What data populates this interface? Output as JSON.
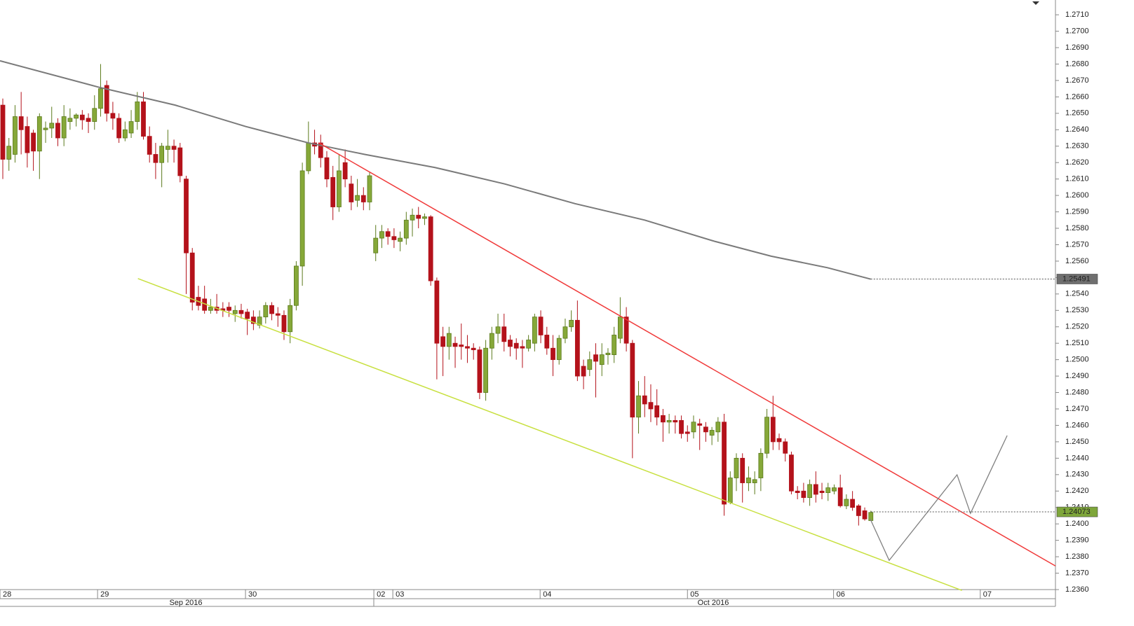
{
  "chart_data": {
    "type": "candlestick",
    "up_color": "#86a839",
    "up_stroke": "#5b7a1c",
    "down_color": "#b4121b",
    "xlim": [
      -0.46,
      172.2
    ],
    "ylim": [
      1.236,
      1.2719
    ],
    "yticks": [
      {
        "value": 1.236,
        "label": "1.2360"
      },
      {
        "value": 1.237,
        "label": "1.2370"
      },
      {
        "value": 1.238,
        "label": "1.2380"
      },
      {
        "value": 1.239,
        "label": "1.2390"
      },
      {
        "value": 1.24,
        "label": "1.2400"
      },
      {
        "value": 1.241,
        "label": "1.2410"
      },
      {
        "value": 1.242,
        "label": "1.2420"
      },
      {
        "value": 1.243,
        "label": "1.2430"
      },
      {
        "value": 1.244,
        "label": "1.2440"
      },
      {
        "value": 1.245,
        "label": "1.2450"
      },
      {
        "value": 1.246,
        "label": "1.2460"
      },
      {
        "value": 1.247,
        "label": "1.2470"
      },
      {
        "value": 1.248,
        "label": "1.2480"
      },
      {
        "value": 1.249,
        "label": "1.2490"
      },
      {
        "value": 1.25,
        "label": "1.2500"
      },
      {
        "value": 1.251,
        "label": "1.2510"
      },
      {
        "value": 1.252,
        "label": "1.2520"
      },
      {
        "value": 1.253,
        "label": "1.2530"
      },
      {
        "value": 1.254,
        "label": "1.2540"
      },
      {
        "value": 1.255,
        "label": "1.2550"
      },
      {
        "value": 1.256,
        "label": "1.2560"
      },
      {
        "value": 1.257,
        "label": "1.2570"
      },
      {
        "value": 1.258,
        "label": "1.2580"
      },
      {
        "value": 1.259,
        "label": "1.2590"
      },
      {
        "value": 1.26,
        "label": "1.2600"
      },
      {
        "value": 1.261,
        "label": "1.2610"
      },
      {
        "value": 1.262,
        "label": "1.2620"
      },
      {
        "value": 1.263,
        "label": "1.2630"
      },
      {
        "value": 1.264,
        "label": "1.2640"
      },
      {
        "value": 1.265,
        "label": "1.2650"
      },
      {
        "value": 1.266,
        "label": "1.2660"
      },
      {
        "value": 1.267,
        "label": "1.2670"
      },
      {
        "value": 1.268,
        "label": "1.2680"
      },
      {
        "value": 1.269,
        "label": "1.2690"
      },
      {
        "value": 1.27,
        "label": "1.2700"
      },
      {
        "value": 1.271,
        "label": "1.2710"
      }
    ],
    "xticks": [
      {
        "value": -0.46,
        "label": "28"
      },
      {
        "value": 15.5,
        "label": "29"
      },
      {
        "value": 39.7,
        "label": "30"
      },
      {
        "value": 60.7,
        "label": "02"
      },
      {
        "value": 63.8,
        "label": "03"
      },
      {
        "value": 87.9,
        "label": "04"
      },
      {
        "value": 112,
        "label": "05"
      },
      {
        "value": 135.9,
        "label": "06"
      },
      {
        "value": 159.9,
        "label": "07"
      }
    ],
    "months": [
      "Sep 2016",
      "Oct 2016"
    ],
    "ohlc": [
      [
        1.2655,
        1.2659,
        1.261,
        1.2622
      ],
      [
        1.2622,
        1.2635,
        1.2615,
        1.263
      ],
      [
        1.2625,
        1.2655,
        1.262,
        1.2648
      ],
      [
        1.2648,
        1.2663,
        1.2625,
        1.264
      ],
      [
        1.2642,
        1.2648,
        1.2617,
        1.2626
      ],
      [
        1.2638,
        1.264,
        1.2615,
        1.2627
      ],
      [
        1.2627,
        1.265,
        1.261,
        1.2648
      ],
      [
        1.264,
        1.2645,
        1.2632,
        1.2641
      ],
      [
        1.2641,
        1.2654,
        1.2635,
        1.2644
      ],
      [
        1.2644,
        1.2647,
        1.263,
        1.2635
      ],
      [
        1.2635,
        1.2655,
        1.263,
        1.2648
      ],
      [
        1.2645,
        1.2653,
        1.264,
        1.2647
      ],
      [
        1.2647,
        1.265,
        1.2642,
        1.2649
      ],
      [
        1.2649,
        1.2652,
        1.264,
        1.2646
      ],
      [
        1.2647,
        1.265,
        1.2638,
        1.2645
      ],
      [
        1.2645,
        1.2661,
        1.264,
        1.2653
      ],
      [
        1.2653,
        1.268,
        1.2648,
        1.2665
      ],
      [
        1.2667,
        1.267,
        1.2645,
        1.265
      ],
      [
        1.265,
        1.2657,
        1.264,
        1.2647
      ],
      [
        1.2647,
        1.265,
        1.2632,
        1.2635
      ],
      [
        1.2635,
        1.2645,
        1.2633,
        1.264
      ],
      [
        1.2638,
        1.2652,
        1.2635,
        1.2645
      ],
      [
        1.2645,
        1.2663,
        1.264,
        1.2657
      ],
      [
        1.2657,
        1.2663,
        1.2634,
        1.2636
      ],
      [
        1.2636,
        1.2642,
        1.262,
        1.2625
      ],
      [
        1.2625,
        1.2632,
        1.261,
        1.262
      ],
      [
        1.262,
        1.2632,
        1.2605,
        1.263
      ],
      [
        1.2628,
        1.264,
        1.262,
        1.263
      ],
      [
        1.263,
        1.2634,
        1.262,
        1.2628
      ],
      [
        1.2629,
        1.2632,
        1.2608,
        1.2612
      ],
      [
        1.261,
        1.2612,
        1.254,
        1.2565
      ],
      [
        1.2565,
        1.2568,
        1.253,
        1.2535
      ],
      [
        1.2538,
        1.2545,
        1.253,
        1.2533
      ],
      [
        1.2537,
        1.2545,
        1.2528,
        1.253
      ],
      [
        1.253,
        1.2537,
        1.2528,
        1.2532
      ],
      [
        1.2532,
        1.254,
        1.2528,
        1.253
      ],
      [
        1.2531,
        1.2535,
        1.2526,
        1.253
      ],
      [
        1.2532,
        1.2535,
        1.2526,
        1.253
      ],
      [
        1.2528,
        1.2533,
        1.2523,
        1.253
      ],
      [
        1.253,
        1.2534,
        1.2525,
        1.2528
      ],
      [
        1.2529,
        1.2531,
        1.2515,
        1.2525
      ],
      [
        1.2526,
        1.253,
        1.2518,
        1.2522
      ],
      [
        1.2521,
        1.253,
        1.2519,
        1.2526
      ],
      [
        1.2526,
        1.2535,
        1.2522,
        1.2533
      ],
      [
        1.2533,
        1.2535,
        1.2524,
        1.2528
      ],
      [
        1.2528,
        1.2532,
        1.252,
        1.2527
      ],
      [
        1.2527,
        1.253,
        1.2512,
        1.2517
      ],
      [
        1.2517,
        1.2537,
        1.251,
        1.2533
      ],
      [
        1.2533,
        1.256,
        1.253,
        1.2557
      ],
      [
        1.2557,
        1.262,
        1.2545,
        1.2615
      ],
      [
        1.2615,
        1.2645,
        1.2613,
        1.2632
      ],
      [
        1.2632,
        1.264,
        1.2625,
        1.263
      ],
      [
        1.2632,
        1.2637,
        1.2617,
        1.2623
      ],
      [
        1.2623,
        1.2627,
        1.2605,
        1.261
      ],
      [
        1.2611,
        1.2618,
        1.2585,
        1.2593
      ],
      [
        1.2593,
        1.2625,
        1.259,
        1.2615
      ],
      [
        1.262,
        1.2628,
        1.2605,
        1.261
      ],
      [
        1.2607,
        1.2612,
        1.2591,
        1.2596
      ],
      [
        1.2597,
        1.261,
        1.2593,
        1.26
      ],
      [
        1.26,
        1.2605,
        1.2591,
        1.2596
      ],
      [
        1.2596,
        1.2614,
        1.2591,
        1.2612
      ],
      [
        1.2565,
        1.2582,
        1.256,
        1.2574
      ],
      [
        1.2574,
        1.2582,
        1.2568,
        1.2578
      ],
      [
        1.2578,
        1.258,
        1.257,
        1.2575
      ],
      [
        1.2575,
        1.258,
        1.2568,
        1.2573
      ],
      [
        1.2572,
        1.2578,
        1.2566,
        1.2574
      ],
      [
        1.2574,
        1.259,
        1.257,
        1.2585
      ],
      [
        1.2585,
        1.2592,
        1.2575,
        1.2588
      ],
      [
        1.2588,
        1.2593,
        1.258,
        1.2586
      ],
      [
        1.2586,
        1.2589,
        1.2582,
        1.2587
      ],
      [
        1.2587,
        1.2588,
        1.2545,
        1.2548
      ],
      [
        1.2548,
        1.255,
        1.2488,
        1.251
      ],
      [
        1.2514,
        1.252,
        1.249,
        1.2508
      ],
      [
        1.2508,
        1.252,
        1.25,
        1.2516
      ],
      [
        1.251,
        1.2514,
        1.2495,
        1.2508
      ],
      [
        1.2509,
        1.2522,
        1.25,
        1.2508
      ],
      [
        1.2508,
        1.2515,
        1.2498,
        1.2507
      ],
      [
        1.2507,
        1.251,
        1.25,
        1.2506
      ],
      [
        1.2506,
        1.2508,
        1.2476,
        1.248
      ],
      [
        1.248,
        1.2512,
        1.2475,
        1.2507
      ],
      [
        1.2507,
        1.252,
        1.25,
        1.2516
      ],
      [
        1.2516,
        1.2528,
        1.251,
        1.252
      ],
      [
        1.252,
        1.2528,
        1.2505,
        1.2511
      ],
      [
        1.2512,
        1.2515,
        1.2502,
        1.2508
      ],
      [
        1.251,
        1.2513,
        1.25,
        1.2507
      ],
      [
        1.2508,
        1.2512,
        1.2495,
        1.2507
      ],
      [
        1.2507,
        1.2515,
        1.2505,
        1.2512
      ],
      [
        1.251,
        1.2528,
        1.2505,
        1.2526
      ],
      [
        1.2526,
        1.253,
        1.251,
        1.2515
      ],
      [
        1.2515,
        1.252,
        1.2503,
        1.2507
      ],
      [
        1.2507,
        1.2515,
        1.249,
        1.25
      ],
      [
        1.25,
        1.2515,
        1.2497,
        1.2513
      ],
      [
        1.2513,
        1.2525,
        1.251,
        1.252
      ],
      [
        1.252,
        1.253,
        1.2517,
        1.2524
      ],
      [
        1.2524,
        1.2536,
        1.2487,
        1.249
      ],
      [
        1.2496,
        1.25,
        1.2482,
        1.249
      ],
      [
        1.2494,
        1.2505,
        1.249,
        1.25
      ],
      [
        1.2503,
        1.251,
        1.2477,
        1.2499
      ],
      [
        1.2497,
        1.251,
        1.249,
        1.2503
      ],
      [
        1.2503,
        1.2507,
        1.2497,
        1.2504
      ],
      [
        1.2503,
        1.252,
        1.2498,
        1.2515
      ],
      [
        1.2513,
        1.2538,
        1.251,
        1.2526
      ],
      [
        1.2526,
        1.2532,
        1.2505,
        1.251
      ],
      [
        1.251,
        1.2512,
        1.244,
        1.2465
      ],
      [
        1.2465,
        1.2487,
        1.2455,
        1.2478
      ],
      [
        1.2478,
        1.249,
        1.2465,
        1.2473
      ],
      [
        1.2474,
        1.2485,
        1.2462,
        1.247
      ],
      [
        1.2472,
        1.2482,
        1.246,
        1.2465
      ],
      [
        1.2466,
        1.247,
        1.245,
        1.2462
      ],
      [
        1.2462,
        1.2467,
        1.2455,
        1.2463
      ],
      [
        1.2463,
        1.2466,
        1.2455,
        1.2462
      ],
      [
        1.2463,
        1.2466,
        1.2452,
        1.2455
      ],
      [
        1.2456,
        1.246,
        1.245,
        1.2455
      ],
      [
        1.2456,
        1.2466,
        1.2452,
        1.2462
      ],
      [
        1.2461,
        1.2464,
        1.2445,
        1.246
      ],
      [
        1.2459,
        1.2462,
        1.245,
        1.2456
      ],
      [
        1.2454,
        1.2459,
        1.2448,
        1.2457
      ],
      [
        1.2456,
        1.2465,
        1.245,
        1.2462
      ],
      [
        1.2462,
        1.2467,
        1.2405,
        1.2412
      ],
      [
        1.2413,
        1.2432,
        1.2412,
        1.2428
      ],
      [
        1.2428,
        1.2443,
        1.242,
        1.244
      ],
      [
        1.244,
        1.2443,
        1.2413,
        1.2425
      ],
      [
        1.2425,
        1.2435,
        1.242,
        1.2428
      ],
      [
        1.2425,
        1.2432,
        1.2418,
        1.2427
      ],
      [
        1.2428,
        1.2446,
        1.242,
        1.2443
      ],
      [
        1.2443,
        1.247,
        1.244,
        1.2465
      ],
      [
        1.2465,
        1.2478,
        1.2445,
        1.245
      ],
      [
        1.2452,
        1.2455,
        1.2445,
        1.245
      ],
      [
        1.245,
        1.2452,
        1.2438,
        1.2443
      ],
      [
        1.2442,
        1.2444,
        1.2418,
        1.242
      ],
      [
        1.242,
        1.2423,
        1.2415,
        1.2419
      ],
      [
        1.242,
        1.2425,
        1.2413,
        1.2416
      ],
      [
        1.2416,
        1.2427,
        1.2411,
        1.2424
      ],
      [
        1.2424,
        1.2432,
        1.2413,
        1.2418
      ],
      [
        1.242,
        1.2425,
        1.2415,
        1.2419
      ],
      [
        1.2419,
        1.2425,
        1.2414,
        1.2422
      ],
      [
        1.242,
        1.2424,
        1.2418,
        1.2422
      ],
      [
        1.2422,
        1.243,
        1.241,
        1.2411
      ],
      [
        1.2411,
        1.2418,
        1.2409,
        1.2415
      ],
      [
        1.2415,
        1.242,
        1.2408,
        1.241
      ],
      [
        1.2411,
        1.2412,
        1.2399,
        1.2405
      ],
      [
        1.2408,
        1.241,
        1.2402,
        1.2403
      ],
      [
        1.2402,
        1.2408,
        1.2402,
        1.2407
      ]
    ],
    "overlays": [
      {
        "color": "#7a7a7a",
        "width": 2,
        "x": [
          -0.46,
          15.6,
          28.2,
          39.7,
          50,
          59.2,
          70.7,
          82.1,
          93.6,
          105,
          116.5,
          125.7,
          134.9,
          142
        ],
        "values": [
          1.2682,
          1.2666,
          1.2655,
          1.2642,
          1.2632,
          1.2625,
          1.2617,
          1.2607,
          1.2595,
          1.2585,
          1.2572,
          1.2563,
          1.2556,
          1.2549
        ]
      },
      {
        "color": "#f03a3a",
        "width": 1.5,
        "x": [
          51.7,
          172.2
        ],
        "values": [
          1.2632,
          1.23744
        ]
      },
      {
        "color": "#c8e040",
        "width": 1.5,
        "x": [
          22.1,
          156.9
        ],
        "values": [
          1.25494,
          1.23595
        ]
      },
      {
        "color": "#808080",
        "width": 1.3,
        "x": [
          141.9,
          145,
          156.1,
          158.3,
          164.3
        ],
        "values": [
          1.2403,
          1.23778,
          1.24299,
          1.24064,
          1.24538
        ]
      }
    ],
    "price_labels": [
      {
        "value": 1.25491,
        "color": "#6f6f6f",
        "from": 142
      },
      {
        "value": 1.24073,
        "color": "#7ea63a",
        "from": 142
      }
    ]
  }
}
